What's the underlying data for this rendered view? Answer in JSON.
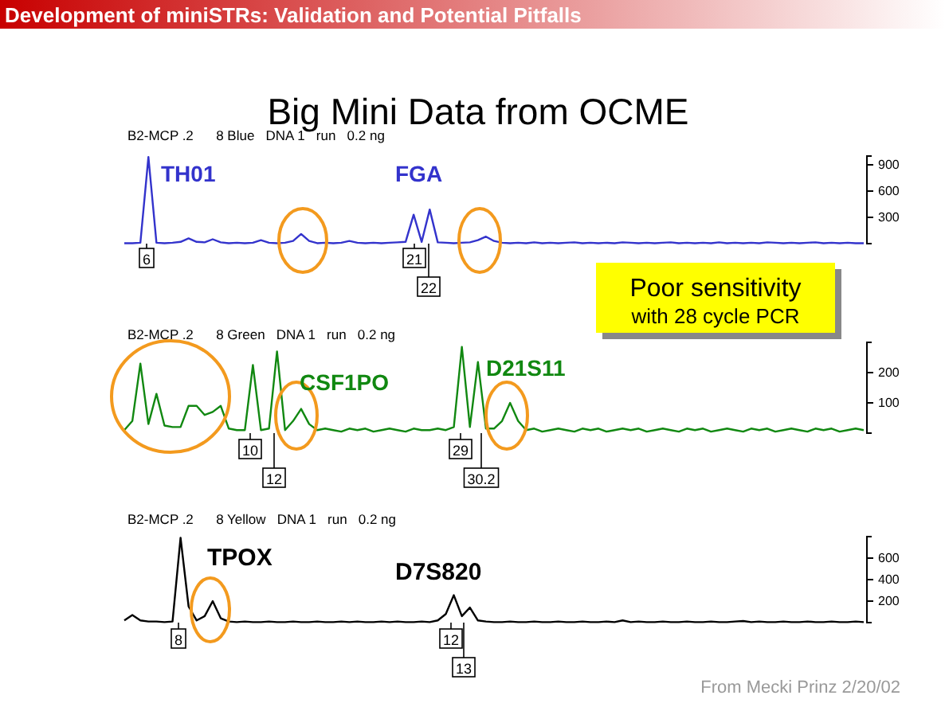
{
  "chart_data": [
    {
      "type": "line",
      "title": "B2-MCP .2      8 Blue   DNA 1   run   0.2 ng",
      "tick_labels": "y",
      "ylim": [
        0,
        1000
      ],
      "yticks": [
        300,
        600,
        900
      ],
      "categories": [
        null,
        null,
        null,
        null,
        null,
        null,
        null,
        null,
        null,
        null,
        null,
        null,
        null,
        null,
        null,
        null,
        null,
        null,
        null,
        null,
        null,
        null,
        null,
        null,
        null,
        null,
        null,
        null,
        null,
        null,
        null,
        null,
        null,
        null,
        null,
        null,
        null,
        null,
        null,
        null,
        null,
        null,
        null,
        null,
        null,
        null,
        null,
        null,
        null,
        null,
        null,
        null,
        null,
        null,
        null,
        null,
        null,
        null,
        null,
        null,
        null,
        null,
        null,
        null,
        null,
        null,
        null,
        null,
        null,
        null,
        null,
        null,
        null,
        null,
        null,
        null,
        null,
        null,
        null,
        null,
        null,
        null,
        null,
        null,
        null,
        null,
        null,
        null,
        null,
        null,
        null,
        null,
        null
      ],
      "series": [
        {
          "color": "#3333cc",
          "values": [
            5,
            5,
            10,
            990,
            10,
            5,
            10,
            20,
            60,
            20,
            15,
            50,
            15,
            5,
            10,
            5,
            10,
            40,
            10,
            5,
            10,
            30,
            110,
            30,
            5,
            10,
            5,
            10,
            30,
            10,
            5,
            10,
            5,
            10,
            15,
            20,
            330,
            20,
            390,
            15,
            10,
            5,
            10,
            15,
            40,
            80,
            30,
            10,
            5,
            10,
            5,
            15,
            5,
            10,
            5,
            10,
            15,
            5,
            10,
            5,
            10,
            5,
            15,
            10,
            5,
            10,
            5,
            10,
            15,
            5,
            10,
            5,
            10,
            5,
            15,
            5,
            10,
            5,
            10,
            5,
            15,
            10,
            5,
            10,
            5,
            10,
            15,
            5,
            10,
            5,
            10,
            5,
            5
          ]
        }
      ],
      "annotations": [
        "Development of miniSTRs: Validation and Potential Pitfalls",
        "Big Mini Data from OCME",
        "TH01",
        "FGA",
        "6",
        "21",
        "22",
        "Poor sensitivity",
        "with 28 cycle PCR"
      ]
    },
    {
      "type": "line",
      "title": "B2-MCP .2      8 Green   DNA 1   run   0.2 ng",
      "tick_labels": "y",
      "ylim": [
        0,
        300
      ],
      "yticks": [
        100,
        200
      ],
      "categories": [
        null,
        null,
        null,
        null,
        null,
        null,
        null,
        null,
        null,
        null,
        null,
        null,
        null,
        null,
        null,
        null,
        null,
        null,
        null,
        null,
        null,
        null,
        null,
        null,
        null,
        null,
        null,
        null,
        null,
        null,
        null,
        null,
        null,
        null,
        null,
        null,
        null,
        null,
        null,
        null,
        null,
        null,
        null,
        null,
        null,
        null,
        null,
        null,
        null,
        null,
        null,
        null,
        null,
        null,
        null,
        null,
        null,
        null,
        null,
        null,
        null,
        null,
        null,
        null,
        null,
        null,
        null,
        null,
        null,
        null,
        null,
        null,
        null,
        null,
        null,
        null,
        null,
        null,
        null,
        null,
        null,
        null,
        null,
        null,
        null,
        null,
        null,
        null,
        null,
        null,
        null,
        null,
        null
      ],
      "series": [
        {
          "color": "#118811",
          "values": [
            10,
            40,
            230,
            30,
            130,
            25,
            20,
            20,
            90,
            90,
            60,
            70,
            90,
            15,
            10,
            10,
            225,
            10,
            15,
            270,
            10,
            40,
            80,
            30,
            10,
            15,
            10,
            5,
            15,
            10,
            15,
            5,
            10,
            15,
            10,
            5,
            15,
            10,
            10,
            15,
            10,
            20,
            285,
            20,
            235,
            15,
            15,
            40,
            100,
            40,
            10,
            15,
            5,
            10,
            15,
            10,
            5,
            15,
            10,
            15,
            5,
            10,
            15,
            10,
            15,
            5,
            10,
            15,
            10,
            5,
            15,
            10,
            15,
            5,
            10,
            15,
            10,
            5,
            15,
            10,
            15,
            5,
            10,
            15,
            10,
            5,
            15,
            10,
            15,
            5,
            10,
            15,
            10
          ]
        }
      ],
      "annotations": [
        "CSF1PO",
        "D21S11",
        "10",
        "12",
        "29",
        "30.2"
      ]
    },
    {
      "type": "line",
      "title": "B2-MCP .2      8 Yellow   DNA 1   run   0.2 ng",
      "tick_labels": "y",
      "ylim": [
        0,
        800
      ],
      "yticks": [
        200,
        400,
        600
      ],
      "categories": [
        null,
        null,
        null,
        null,
        null,
        null,
        null,
        null,
        null,
        null,
        null,
        null,
        null,
        null,
        null,
        null,
        null,
        null,
        null,
        null,
        null,
        null,
        null,
        null,
        null,
        null,
        null,
        null,
        null,
        null,
        null,
        null,
        null,
        null,
        null,
        null,
        null,
        null,
        null,
        null,
        null,
        null,
        null,
        null,
        null,
        null,
        null,
        null,
        null,
        null,
        null,
        null,
        null,
        null,
        null,
        null,
        null,
        null,
        null,
        null,
        null,
        null,
        null,
        null,
        null,
        null,
        null,
        null,
        null,
        null,
        null,
        null,
        null,
        null,
        null,
        null,
        null,
        null,
        null,
        null,
        null,
        null,
        null,
        null,
        null,
        null,
        null,
        null,
        null,
        null,
        null,
        null,
        null
      ],
      "series": [
        {
          "color": "#000000",
          "values": [
            20,
            70,
            20,
            10,
            10,
            5,
            10,
            790,
            150,
            20,
            60,
            200,
            40,
            10,
            5,
            10,
            5,
            5,
            10,
            5,
            5,
            10,
            5,
            5,
            10,
            5,
            5,
            10,
            5,
            10,
            5,
            5,
            10,
            5,
            10,
            5,
            5,
            10,
            5,
            20,
            80,
            255,
            60,
            140,
            20,
            10,
            5,
            5,
            10,
            5,
            5,
            10,
            5,
            5,
            10,
            5,
            5,
            10,
            5,
            5,
            10,
            5,
            20,
            5,
            10,
            5,
            5,
            10,
            5,
            5,
            10,
            5,
            5,
            10,
            5,
            5,
            10,
            15,
            5,
            10,
            5,
            5,
            10,
            5,
            5,
            10,
            5,
            5,
            10,
            5,
            5,
            10,
            5
          ]
        }
      ],
      "annotations": [
        "TPOX",
        "D7S820",
        "8",
        "12",
        "13",
        "From Mecki Prinz 2/20/02"
      ]
    }
  ]
}
